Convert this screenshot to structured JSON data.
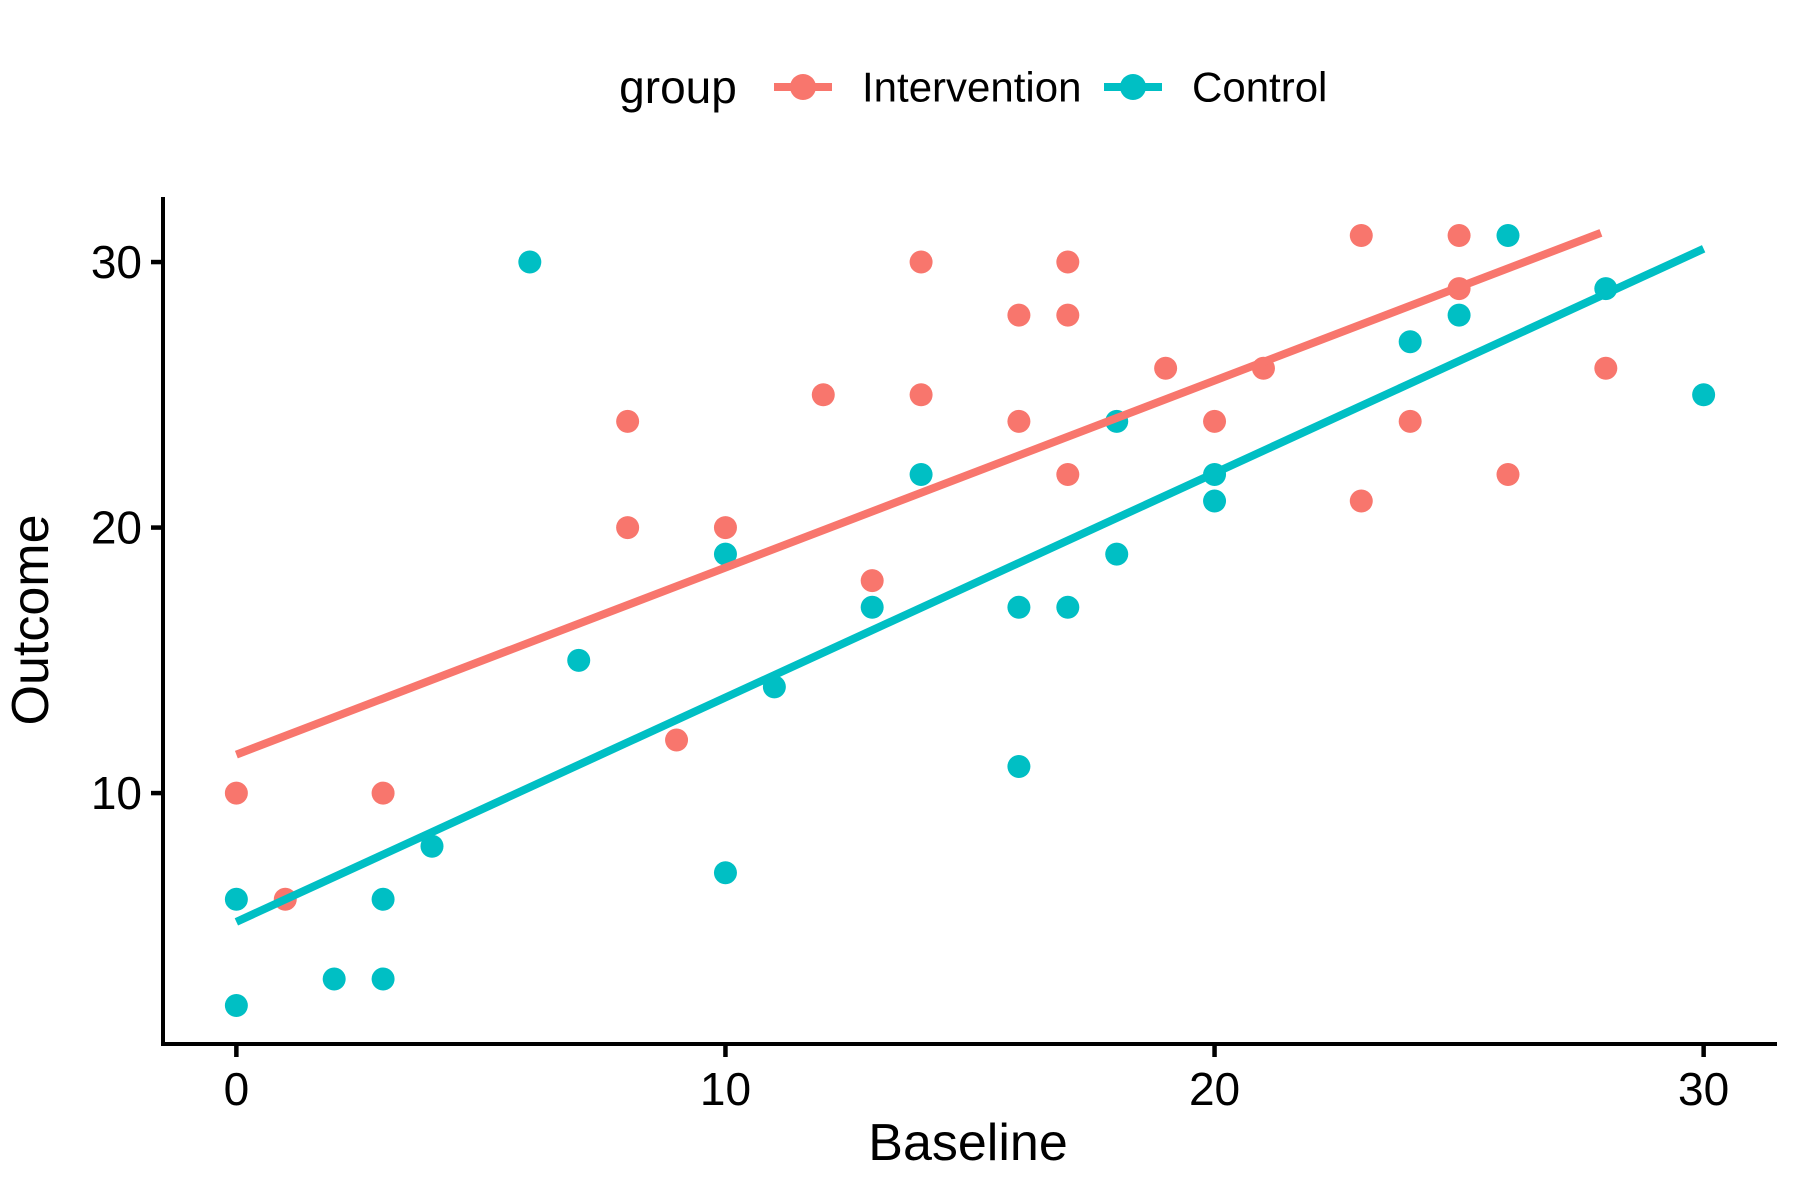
{
  "chart_data": {
    "type": "scatter",
    "title": "",
    "xlabel": "Baseline",
    "ylabel": "Outcome",
    "legend_title": "group",
    "legend_position": "top",
    "grid": false,
    "background_color": "#ffffff",
    "axis_color": "#000000",
    "text_color": "#000000",
    "xlim": [
      -1.5,
      31.5
    ],
    "ylim": [
      0.55,
      32.45
    ],
    "x_ticks": [
      0,
      10,
      20,
      30
    ],
    "y_ticks": [
      10,
      20,
      30
    ],
    "point_radius": 11.5,
    "trend_line_width": 8,
    "series": [
      {
        "name": "Intervention",
        "color": "#F8766D",
        "points": [
          [
            0,
            10
          ],
          [
            1,
            6
          ],
          [
            3,
            10
          ],
          [
            8,
            20
          ],
          [
            8,
            24
          ],
          [
            9,
            12
          ],
          [
            10,
            20
          ],
          [
            12,
            25
          ],
          [
            13,
            18
          ],
          [
            14,
            25
          ],
          [
            14,
            30
          ],
          [
            16,
            24
          ],
          [
            16,
            28
          ],
          [
            17,
            22
          ],
          [
            17,
            28
          ],
          [
            17,
            30
          ],
          [
            19,
            26
          ],
          [
            20,
            24
          ],
          [
            21,
            26
          ],
          [
            23,
            21
          ],
          [
            23,
            31
          ],
          [
            24,
            24
          ],
          [
            25,
            29
          ],
          [
            25,
            31
          ],
          [
            26,
            22
          ],
          [
            28,
            26
          ]
        ],
        "trend_line": {
          "x0": 0,
          "y0": 11.45,
          "x1": 27.9,
          "y1": 31.1
        }
      },
      {
        "name": "Control",
        "color": "#00BFC4",
        "points": [
          [
            0,
            2
          ],
          [
            0,
            6
          ],
          [
            2,
            3
          ],
          [
            3,
            3
          ],
          [
            3,
            6
          ],
          [
            4,
            8
          ],
          [
            6,
            30
          ],
          [
            7,
            15
          ],
          [
            10,
            7
          ],
          [
            10,
            19
          ],
          [
            11,
            14
          ],
          [
            13,
            17
          ],
          [
            14,
            22
          ],
          [
            16,
            11
          ],
          [
            16,
            17
          ],
          [
            17,
            17
          ],
          [
            18,
            19
          ],
          [
            18,
            24
          ],
          [
            20,
            21
          ],
          [
            20,
            22
          ],
          [
            24,
            27
          ],
          [
            25,
            28
          ],
          [
            26,
            31
          ],
          [
            28,
            29
          ],
          [
            30,
            25
          ]
        ],
        "trend_line": {
          "x0": 0,
          "y0": 5.15,
          "x1": 30,
          "y1": 30.5
        }
      }
    ]
  }
}
